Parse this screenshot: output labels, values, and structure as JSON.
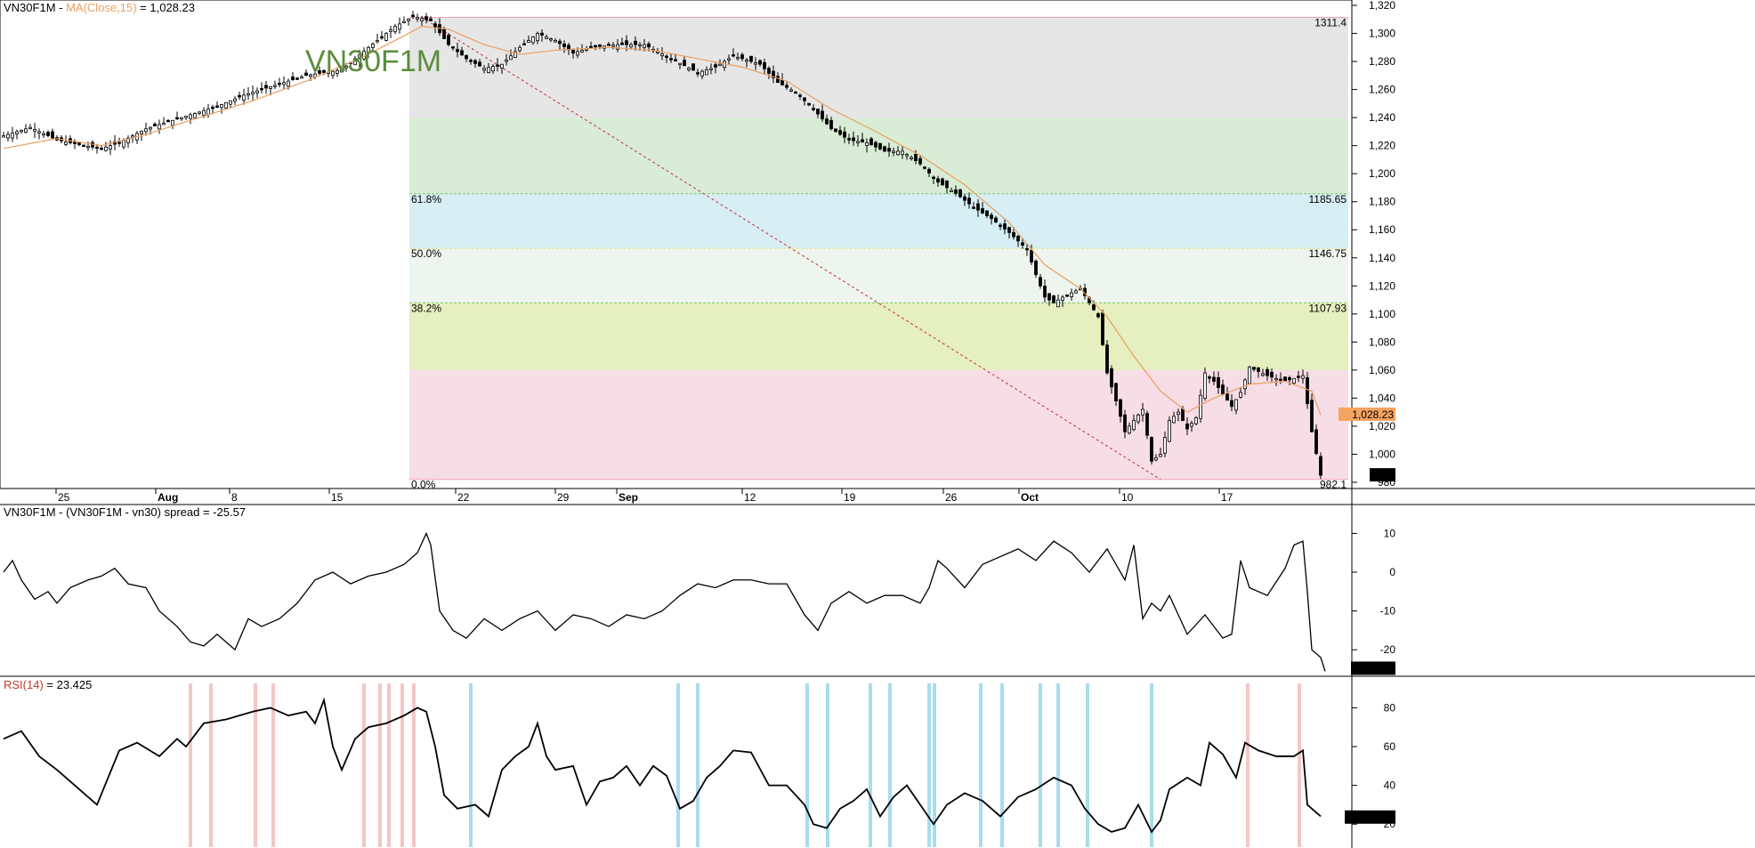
{
  "colors": {
    "price": "#000000",
    "ma": "#e8a060",
    "trendline": "#c0504d",
    "label_price_bg": "#f4a460",
    "rsi_pink_band": "#f4c6c6",
    "rsi_blue_band": "#a9dcec",
    "ticker_watermark": "#5b8e3d"
  },
  "price_panel": {
    "ticker": "VN30F1M",
    "sep": " - ",
    "ma_label": "MA(Close,15)",
    "ma_value": " = 1,028.23",
    "watermark": "VN30F1M",
    "last_price_label": "1,028.23",
    "last_close_label": "985"
  },
  "spread_panel": {
    "header": "VN30F1M - (VN30F1M - vn30) spread = -25.57",
    "last_label": "-25.57"
  },
  "rsi_panel": {
    "header_name": "RSI(14)",
    "header_value": " = 23.425",
    "last_label": "23.4251"
  },
  "chart_data": [
    {
      "type": "candlestick",
      "title": "VN30F1M",
      "ylim": [
        980,
        1320
      ],
      "yticks": [
        "1,320",
        "1,300",
        "1,280",
        "1,260",
        "1,240",
        "1,220",
        "1,200",
        "1,180",
        "1,160",
        "1,140",
        "1,120",
        "1,100",
        "1,080",
        "1,060",
        "1,040",
        "1,020",
        "1,000",
        "980"
      ],
      "xticks": [
        "25",
        "Aug",
        "8",
        "15",
        "22",
        "29",
        "Sep",
        "12",
        "19",
        "26",
        "Oct",
        "10",
        "17"
      ],
      "close_path": [
        [
          0,
          1227
        ],
        [
          30,
          1233
        ],
        [
          60,
          1224
        ],
        [
          90,
          1220
        ],
        [
          110,
          1218
        ],
        [
          130,
          1222
        ],
        [
          160,
          1232
        ],
        [
          200,
          1240
        ],
        [
          240,
          1248
        ],
        [
          270,
          1256
        ],
        [
          300,
          1262
        ],
        [
          340,
          1270
        ],
        [
          380,
          1274
        ],
        [
          410,
          1290
        ],
        [
          440,
          1305
        ],
        [
          460,
          1312
        ],
        [
          480,
          1309
        ],
        [
          500,
          1292
        ],
        [
          520,
          1282
        ],
        [
          540,
          1275
        ],
        [
          560,
          1278
        ],
        [
          580,
          1290
        ],
        [
          600,
          1300
        ],
        [
          620,
          1295
        ],
        [
          640,
          1286
        ],
        [
          660,
          1290
        ],
        [
          690,
          1292
        ],
        [
          720,
          1292
        ],
        [
          750,
          1282
        ],
        [
          780,
          1272
        ],
        [
          800,
          1276
        ],
        [
          820,
          1284
        ],
        [
          850,
          1278
        ],
        [
          870,
          1265
        ],
        [
          890,
          1258
        ],
        [
          910,
          1246
        ],
        [
          930,
          1232
        ],
        [
          950,
          1224
        ],
        [
          970,
          1222
        ],
        [
          990,
          1216
        ],
        [
          1010,
          1216
        ],
        [
          1030,
          1207
        ],
        [
          1050,
          1194
        ],
        [
          1070,
          1186
        ],
        [
          1090,
          1176
        ],
        [
          1110,
          1168
        ],
        [
          1130,
          1158
        ],
        [
          1150,
          1146
        ],
        [
          1160,
          1128
        ],
        [
          1170,
          1112
        ],
        [
          1180,
          1108
        ],
        [
          1190,
          1112
        ],
        [
          1210,
          1118
        ],
        [
          1230,
          1098
        ],
        [
          1240,
          1058
        ],
        [
          1250,
          1038
        ],
        [
          1260,
          1016
        ],
        [
          1270,
          1024
        ],
        [
          1280,
          1032
        ],
        [
          1290,
          995
        ],
        [
          1300,
          1000
        ],
        [
          1310,
          1024
        ],
        [
          1320,
          1030
        ],
        [
          1330,
          1018
        ],
        [
          1340,
          1026
        ],
        [
          1350,
          1058
        ],
        [
          1360,
          1052
        ],
        [
          1380,
          1034
        ],
        [
          1390,
          1044
        ],
        [
          1400,
          1062
        ],
        [
          1420,
          1056
        ],
        [
          1440,
          1052
        ],
        [
          1460,
          1056
        ],
        [
          1470,
          1016
        ],
        [
          1480,
          985
        ]
      ],
      "ma_path": [
        [
          0,
          1218
        ],
        [
          60,
          1225
        ],
        [
          110,
          1220
        ],
        [
          160,
          1228
        ],
        [
          220,
          1240
        ],
        [
          280,
          1252
        ],
        [
          340,
          1266
        ],
        [
          400,
          1282
        ],
        [
          440,
          1295
        ],
        [
          470,
          1305
        ],
        [
          500,
          1303
        ],
        [
          540,
          1292
        ],
        [
          580,
          1285
        ],
        [
          620,
          1288
        ],
        [
          680,
          1290
        ],
        [
          730,
          1288
        ],
        [
          780,
          1282
        ],
        [
          830,
          1276
        ],
        [
          880,
          1266
        ],
        [
          930,
          1246
        ],
        [
          980,
          1230
        ],
        [
          1030,
          1213
        ],
        [
          1080,
          1192
        ],
        [
          1130,
          1165
        ],
        [
          1170,
          1135
        ],
        [
          1210,
          1118
        ],
        [
          1240,
          1098
        ],
        [
          1270,
          1070
        ],
        [
          1300,
          1045
        ],
        [
          1330,
          1030
        ],
        [
          1360,
          1040
        ],
        [
          1400,
          1050
        ],
        [
          1440,
          1052
        ],
        [
          1470,
          1045
        ],
        [
          1480,
          1028
        ]
      ],
      "fibonacci": {
        "high": 1311.4,
        "low": 982.1,
        "levels": [
          {
            "name": "0.0%",
            "price_label": "982.1"
          },
          {
            "name": "",
            "price_label": "1311.4"
          },
          {
            "name": "38.2%",
            "price_label": "1107.93"
          },
          {
            "name": "50.0%",
            "price_label": "1146.75"
          },
          {
            "name": "61.8%",
            "price_label": "1185.65"
          }
        ],
        "zones": [
          {
            "from": 1240,
            "to": 1311.4,
            "color": "#e6e6e6"
          },
          {
            "from": 1185.65,
            "to": 1240,
            "color": "#d9ecd5"
          },
          {
            "from": 1146.75,
            "to": 1185.65,
            "color": "#d6eef4"
          },
          {
            "from": 1107.93,
            "to": 1146.75,
            "color": "#eef5ee"
          },
          {
            "from": 1060,
            "to": 1107.93,
            "color": "#e5efbf"
          },
          {
            "from": 982.1,
            "to": 1060,
            "color": "#f7dde6"
          }
        ]
      }
    },
    {
      "type": "line",
      "title": "VN30F1M - (VN30F1M - vn30) spread",
      "ylim": [
        -25,
        14
      ],
      "yticks": [
        "10",
        "0",
        "-10",
        "-20"
      ],
      "path": [
        [
          0,
          0
        ],
        [
          10,
          3
        ],
        [
          20,
          -2
        ],
        [
          35,
          -7
        ],
        [
          50,
          -5
        ],
        [
          60,
          -8
        ],
        [
          75,
          -4
        ],
        [
          95,
          -2
        ],
        [
          110,
          -1
        ],
        [
          125,
          1
        ],
        [
          140,
          -3
        ],
        [
          160,
          -4
        ],
        [
          175,
          -10
        ],
        [
          195,
          -14
        ],
        [
          210,
          -18
        ],
        [
          225,
          -19
        ],
        [
          240,
          -16
        ],
        [
          260,
          -20
        ],
        [
          275,
          -12
        ],
        [
          290,
          -14
        ],
        [
          310,
          -12
        ],
        [
          330,
          -8
        ],
        [
          350,
          -2
        ],
        [
          370,
          0
        ],
        [
          390,
          -3
        ],
        [
          410,
          -1
        ],
        [
          430,
          0
        ],
        [
          450,
          2
        ],
        [
          465,
          5
        ],
        [
          475,
          10
        ],
        [
          480,
          7
        ],
        [
          490,
          -10
        ],
        [
          505,
          -15
        ],
        [
          520,
          -17
        ],
        [
          540,
          -12
        ],
        [
          560,
          -15
        ],
        [
          580,
          -12
        ],
        [
          600,
          -10
        ],
        [
          620,
          -15
        ],
        [
          640,
          -11
        ],
        [
          660,
          -12
        ],
        [
          680,
          -14
        ],
        [
          700,
          -11
        ],
        [
          720,
          -12
        ],
        [
          740,
          -10
        ],
        [
          760,
          -6
        ],
        [
          780,
          -3
        ],
        [
          800,
          -4
        ],
        [
          820,
          -2
        ],
        [
          840,
          -2
        ],
        [
          860,
          -3
        ],
        [
          880,
          -3
        ],
        [
          900,
          -11
        ],
        [
          915,
          -15
        ],
        [
          930,
          -8
        ],
        [
          950,
          -5
        ],
        [
          970,
          -8
        ],
        [
          990,
          -6
        ],
        [
          1010,
          -6
        ],
        [
          1030,
          -8
        ],
        [
          1040,
          -4
        ],
        [
          1050,
          3
        ],
        [
          1060,
          1
        ],
        [
          1080,
          -4
        ],
        [
          1100,
          2
        ],
        [
          1120,
          4
        ],
        [
          1140,
          6
        ],
        [
          1160,
          3
        ],
        [
          1180,
          8
        ],
        [
          1200,
          5
        ],
        [
          1220,
          0
        ],
        [
          1240,
          6
        ],
        [
          1260,
          -2
        ],
        [
          1270,
          7
        ],
        [
          1280,
          -12
        ],
        [
          1290,
          -8
        ],
        [
          1300,
          -10
        ],
        [
          1310,
          -6
        ],
        [
          1320,
          -11
        ],
        [
          1330,
          -16
        ],
        [
          1350,
          -11
        ],
        [
          1370,
          -17
        ],
        [
          1380,
          -16
        ],
        [
          1390,
          3
        ],
        [
          1400,
          -4
        ],
        [
          1420,
          -6
        ],
        [
          1440,
          1
        ],
        [
          1450,
          7
        ],
        [
          1460,
          8
        ],
        [
          1465,
          -5
        ],
        [
          1470,
          -20
        ],
        [
          1480,
          -22
        ],
        [
          1485,
          -25.57
        ]
      ]
    },
    {
      "type": "line",
      "title": "RSI(14)",
      "ylim": [
        10,
        88
      ],
      "yticks": [
        "80",
        "60",
        "40",
        "20"
      ],
      "path": [
        [
          0,
          64
        ],
        [
          20,
          68
        ],
        [
          40,
          55
        ],
        [
          60,
          48
        ],
        [
          80,
          40
        ],
        [
          105,
          30
        ],
        [
          130,
          58
        ],
        [
          150,
          62
        ],
        [
          175,
          55
        ],
        [
          195,
          64
        ],
        [
          205,
          60
        ],
        [
          225,
          72
        ],
        [
          250,
          74
        ],
        [
          280,
          78
        ],
        [
          300,
          80
        ],
        [
          320,
          76
        ],
        [
          340,
          78
        ],
        [
          350,
          72
        ],
        [
          360,
          84
        ],
        [
          370,
          60
        ],
        [
          380,
          48
        ],
        [
          395,
          64
        ],
        [
          410,
          70
        ],
        [
          430,
          72
        ],
        [
          450,
          76
        ],
        [
          465,
          80
        ],
        [
          475,
          78
        ],
        [
          485,
          60
        ],
        [
          495,
          35
        ],
        [
          510,
          28
        ],
        [
          530,
          30
        ],
        [
          545,
          24
        ],
        [
          560,
          48
        ],
        [
          575,
          55
        ],
        [
          590,
          60
        ],
        [
          600,
          72
        ],
        [
          610,
          55
        ],
        [
          620,
          48
        ],
        [
          640,
          50
        ],
        [
          655,
          30
        ],
        [
          670,
          42
        ],
        [
          685,
          44
        ],
        [
          700,
          50
        ],
        [
          715,
          40
        ],
        [
          730,
          50
        ],
        [
          745,
          45
        ],
        [
          760,
          28
        ],
        [
          775,
          32
        ],
        [
          790,
          44
        ],
        [
          805,
          50
        ],
        [
          820,
          58
        ],
        [
          840,
          57
        ],
        [
          860,
          40
        ],
        [
          880,
          40
        ],
        [
          900,
          30
        ],
        [
          910,
          20
        ],
        [
          925,
          18
        ],
        [
          940,
          28
        ],
        [
          955,
          32
        ],
        [
          970,
          38
        ],
        [
          985,
          24
        ],
        [
          1000,
          34
        ],
        [
          1015,
          40
        ],
        [
          1030,
          30
        ],
        [
          1045,
          20
        ],
        [
          1060,
          30
        ],
        [
          1080,
          36
        ],
        [
          1100,
          32
        ],
        [
          1120,
          24
        ],
        [
          1140,
          34
        ],
        [
          1160,
          38
        ],
        [
          1180,
          44
        ],
        [
          1200,
          40
        ],
        [
          1215,
          28
        ],
        [
          1230,
          20
        ],
        [
          1245,
          16
        ],
        [
          1260,
          18
        ],
        [
          1275,
          30
        ],
        [
          1290,
          16
        ],
        [
          1300,
          22
        ],
        [
          1310,
          38
        ],
        [
          1330,
          44
        ],
        [
          1345,
          40
        ],
        [
          1355,
          62
        ],
        [
          1370,
          56
        ],
        [
          1385,
          44
        ],
        [
          1395,
          62
        ],
        [
          1410,
          58
        ],
        [
          1430,
          55
        ],
        [
          1450,
          55
        ],
        [
          1460,
          58
        ],
        [
          1465,
          30
        ],
        [
          1480,
          24
        ]
      ],
      "bands_pink_x": [
        210,
        233,
        283,
        303,
        405,
        423,
        433,
        448,
        461,
        1398,
        1456
      ],
      "bands_blue_x": [
        525,
        758,
        780,
        903,
        926,
        974,
        996,
        1040,
        1046,
        1098,
        1122,
        1165,
        1185,
        1218,
        1290
      ]
    }
  ]
}
